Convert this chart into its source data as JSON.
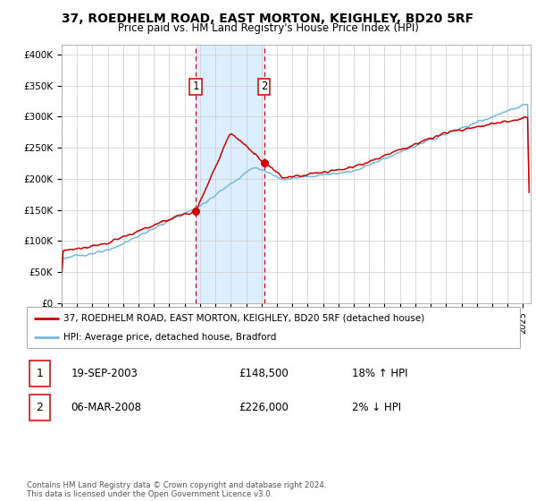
{
  "title": "37, ROEDHELM ROAD, EAST MORTON, KEIGHLEY, BD20 5RF",
  "subtitle": "Price paid vs. HM Land Registry's House Price Index (HPI)",
  "ylabel_ticks": [
    "£0",
    "£50K",
    "£100K",
    "£150K",
    "£200K",
    "£250K",
    "£300K",
    "£350K",
    "£400K"
  ],
  "ylabel_values": [
    0,
    50000,
    100000,
    150000,
    200000,
    250000,
    300000,
    350000,
    400000
  ],
  "ylim": [
    0,
    415000
  ],
  "xlim_start": 1995.0,
  "xlim_end": 2025.5,
  "hpi_color": "#7ab8d9",
  "price_color": "#cc0000",
  "shade_color": "#ddeeff",
  "marker1_date": 2003.72,
  "marker1_price": 148500,
  "marker2_date": 2008.17,
  "marker2_price": 226000,
  "legend_label1": "37, ROEDHELM ROAD, EAST MORTON, KEIGHLEY, BD20 5RF (detached house)",
  "legend_label2": "HPI: Average price, detached house, Bradford",
  "table_row1": [
    "1",
    "19-SEP-2003",
    "£148,500",
    "18% ↑ HPI"
  ],
  "table_row2": [
    "2",
    "06-MAR-2008",
    "£226,000",
    "2% ↓ HPI"
  ],
  "footer": "Contains HM Land Registry data © Crown copyright and database right 2024.\nThis data is licensed under the Open Government Licence v3.0."
}
